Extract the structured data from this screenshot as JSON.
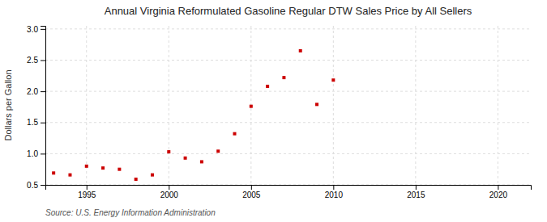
{
  "chart_data": {
    "type": "scatter",
    "title": "Annual Virginia Reformulated Gasoline Regular DTW Sales Price by All Sellers",
    "ylabel": "Dollars per Gallon",
    "annotations": [
      "Source: U.S. Energy Information Administration"
    ],
    "x": [
      1993,
      1994,
      1995,
      1996,
      1997,
      1998,
      1999,
      2000,
      2001,
      2002,
      2003,
      2004,
      2005,
      2006,
      2007,
      2008,
      2009,
      2010
    ],
    "values": [
      0.69,
      0.66,
      0.8,
      0.77,
      0.75,
      0.59,
      0.66,
      1.03,
      0.93,
      0.87,
      1.04,
      1.32,
      1.76,
      2.08,
      2.22,
      2.65,
      1.79,
      2.18
    ],
    "color": "#cc0000",
    "marker": "square",
    "xlim": [
      1992.5,
      2022
    ],
    "ylim": [
      0.5,
      3.05
    ],
    "xticks": [
      1995,
      2000,
      2005,
      2010,
      2015,
      2020
    ],
    "yticks": [
      0.5,
      {
        "value": 1.0,
        "label": "1.0"
      },
      1.5,
      {
        "value": 2.0,
        "label": "2.0"
      },
      2.5,
      {
        "value": 3.0,
        "label": "3.0"
      }
    ],
    "grid": true
  }
}
